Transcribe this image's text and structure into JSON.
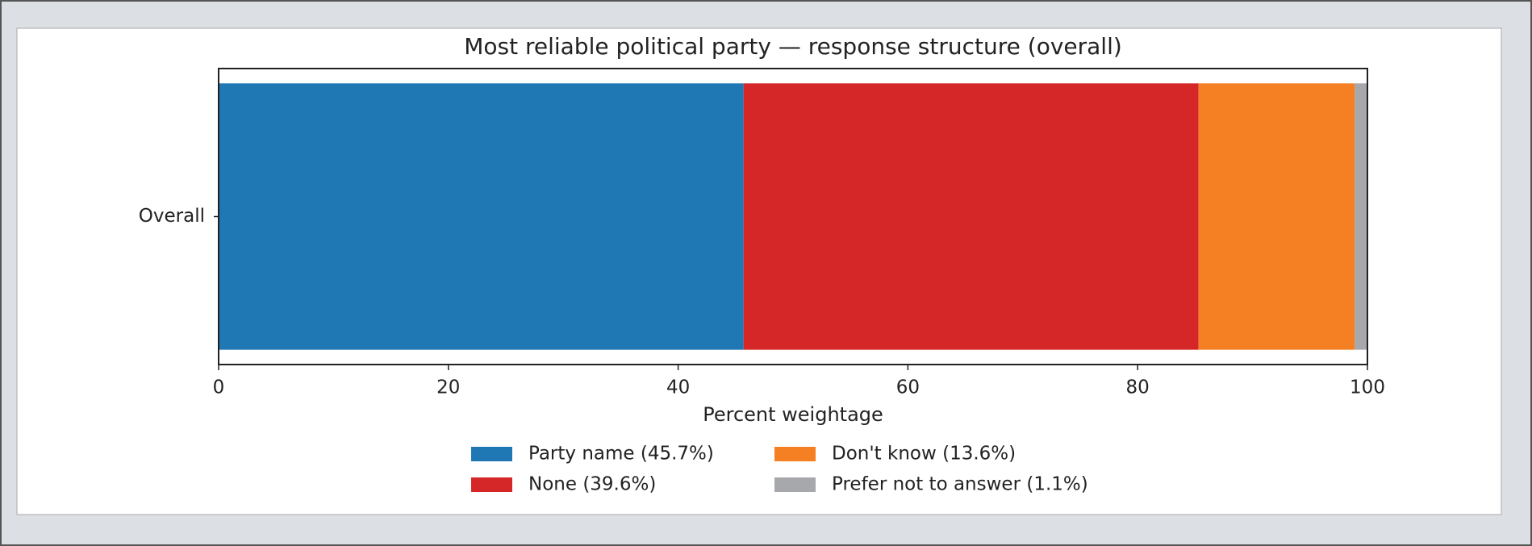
{
  "chart_data": {
    "type": "bar",
    "orientation": "horizontal",
    "stacked": true,
    "title": "Most reliable political party — response structure (overall)",
    "xlabel": "Percent weightage",
    "categories": [
      "Overall"
    ],
    "series": [
      {
        "name": "Party name (45.7%)",
        "color": "#1f77b4",
        "values": [
          45.7
        ]
      },
      {
        "name": "None (39.6%)",
        "color": "#d62728",
        "values": [
          39.6
        ]
      },
      {
        "name": "Don't know (13.6%)",
        "color": "#f58024",
        "values": [
          13.6
        ]
      },
      {
        "name": "Prefer not to answer (1.1%)",
        "color": "#a6a8ab",
        "values": [
          1.1
        ]
      }
    ],
    "xlim": [
      0,
      100
    ],
    "xticks": [
      0,
      20,
      40,
      60,
      80,
      100
    ],
    "legend": "bottom"
  }
}
